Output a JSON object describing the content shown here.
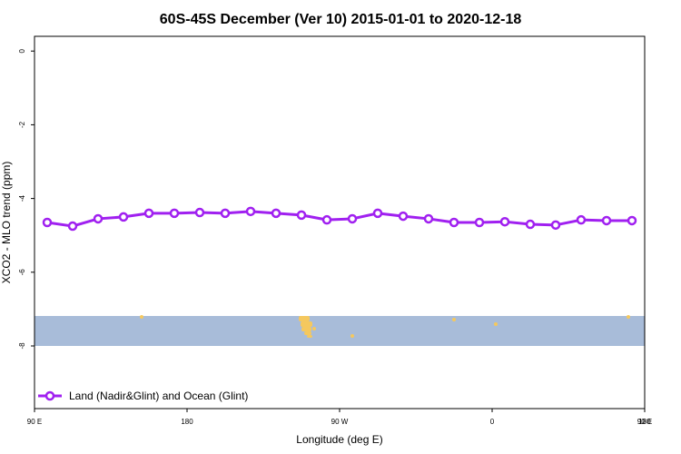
{
  "chart_data": {
    "type": "line",
    "title": "60S-45S December (Ver 10)   2015-01-01 to 2020-12-18",
    "xlabel": "Longitude (deg E)",
    "ylabel": "XCO2 - MLO trend (ppm)",
    "xlim": [
      90,
      450
    ],
    "ylim": [
      -9.7,
      0.4
    ],
    "x_tick_values": [
      90,
      180,
      270,
      360,
      450,
      540
    ],
    "x_tick_labels": [
      "90 E",
      "180",
      "90 W",
      "0",
      "90 E",
      "180"
    ],
    "y_ticks": [
      0,
      -2,
      -4,
      -6,
      -8
    ],
    "y_tick_labels": [
      "0",
      "-2",
      "-4",
      "-6",
      "-8"
    ],
    "legend_position": "bottom-left",
    "grid": false,
    "colors": {
      "series": "#a020f0",
      "ocean_band": "#a8bcd9",
      "land": "#f5c85e"
    },
    "series": [
      {
        "name": "Land (Nadir&Glint) and Ocean (Glint)",
        "x": [
          97.5,
          112.5,
          127.5,
          142.5,
          157.5,
          172.5,
          187.5,
          202.5,
          217.5,
          232.5,
          247.5,
          262.5,
          277.5,
          292.5,
          307.5,
          322.5,
          337.5,
          352.5,
          367.5,
          382.5,
          397.5,
          412.5,
          427.5,
          442.5
        ],
        "y": [
          -4.65,
          -4.75,
          -4.55,
          -4.5,
          -4.4,
          -4.4,
          -4.38,
          -4.4,
          -4.35,
          -4.4,
          -4.45,
          -4.58,
          -4.55,
          -4.4,
          -4.48,
          -4.55,
          -4.65,
          -4.65,
          -4.63,
          -4.7,
          -4.72,
          -4.58,
          -4.6,
          -4.6
        ]
      }
    ]
  }
}
